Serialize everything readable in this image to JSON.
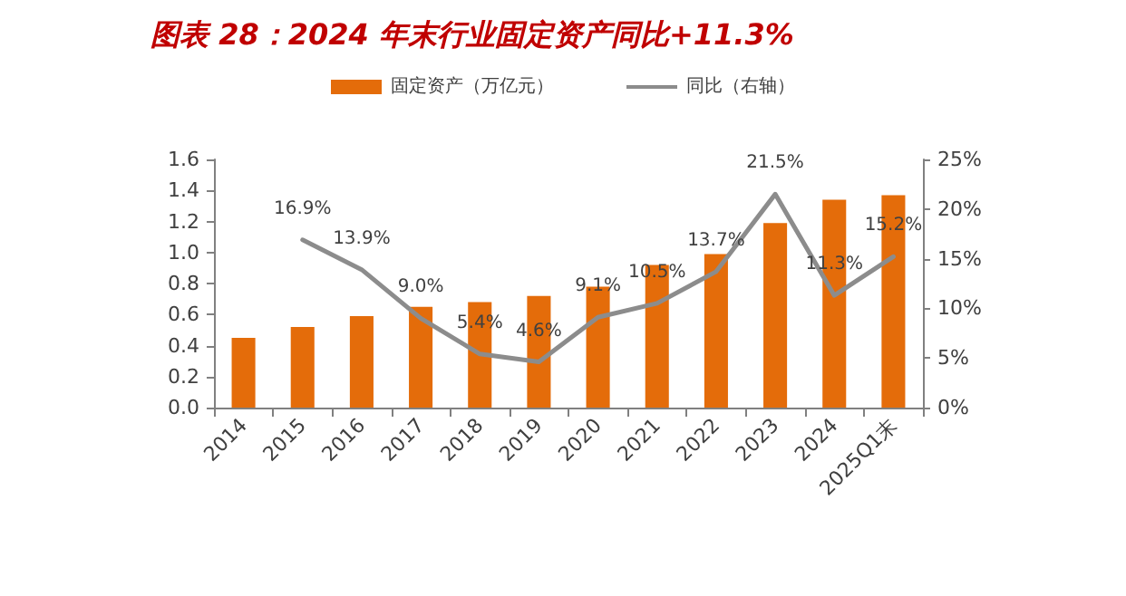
{
  "chart_data": {
    "type": "bar",
    "title": "图表 28：2024 年末行业固定资产同比+11.3%",
    "categories": [
      "2014",
      "2015",
      "2016",
      "2017",
      "2018",
      "2019",
      "2020",
      "2021",
      "2022",
      "2023",
      "2024",
      "2025Q1末"
    ],
    "series": [
      {
        "name": "固定资产（万亿元）",
        "color": "#e46c0a",
        "values": [
          0.45,
          0.52,
          0.59,
          0.65,
          0.68,
          0.72,
          0.78,
          0.92,
          0.99,
          1.19,
          1.34,
          1.37
        ]
      },
      {
        "name": "同比（右轴）",
        "type": "line",
        "axis": "y2",
        "color": "#8c8c8c",
        "values": [
          null,
          16.9,
          13.9,
          9.0,
          5.4,
          4.6,
          9.1,
          10.5,
          13.7,
          21.5,
          11.3,
          15.2
        ],
        "value_labels": [
          null,
          "16.9%",
          "13.9%",
          "9.0%",
          "5.4%",
          "4.6%",
          "9.1%",
          "10.5%",
          "13.7%",
          "21.5%",
          "11.3%",
          "15.2%"
        ]
      }
    ],
    "ylim": [
      0,
      1.6
    ],
    "yticks": [
      {
        "value": 0,
        "label": "0.0"
      },
      0.2,
      0.4,
      0.6,
      0.8,
      {
        "value": 1,
        "label": "1.0"
      },
      1.2,
      1.4,
      1.6
    ],
    "y2lim": [
      0,
      25
    ],
    "y2ticks": [
      {
        "value": 0,
        "label": "0%"
      },
      {
        "value": 5,
        "label": "5%"
      },
      {
        "value": 10,
        "label": "10%"
      },
      {
        "value": 15,
        "label": "15%"
      },
      {
        "value": 20,
        "label": "20%"
      },
      {
        "value": 25,
        "label": "25%"
      }
    ],
    "grid": false,
    "legend": "top",
    "marker": "none"
  }
}
